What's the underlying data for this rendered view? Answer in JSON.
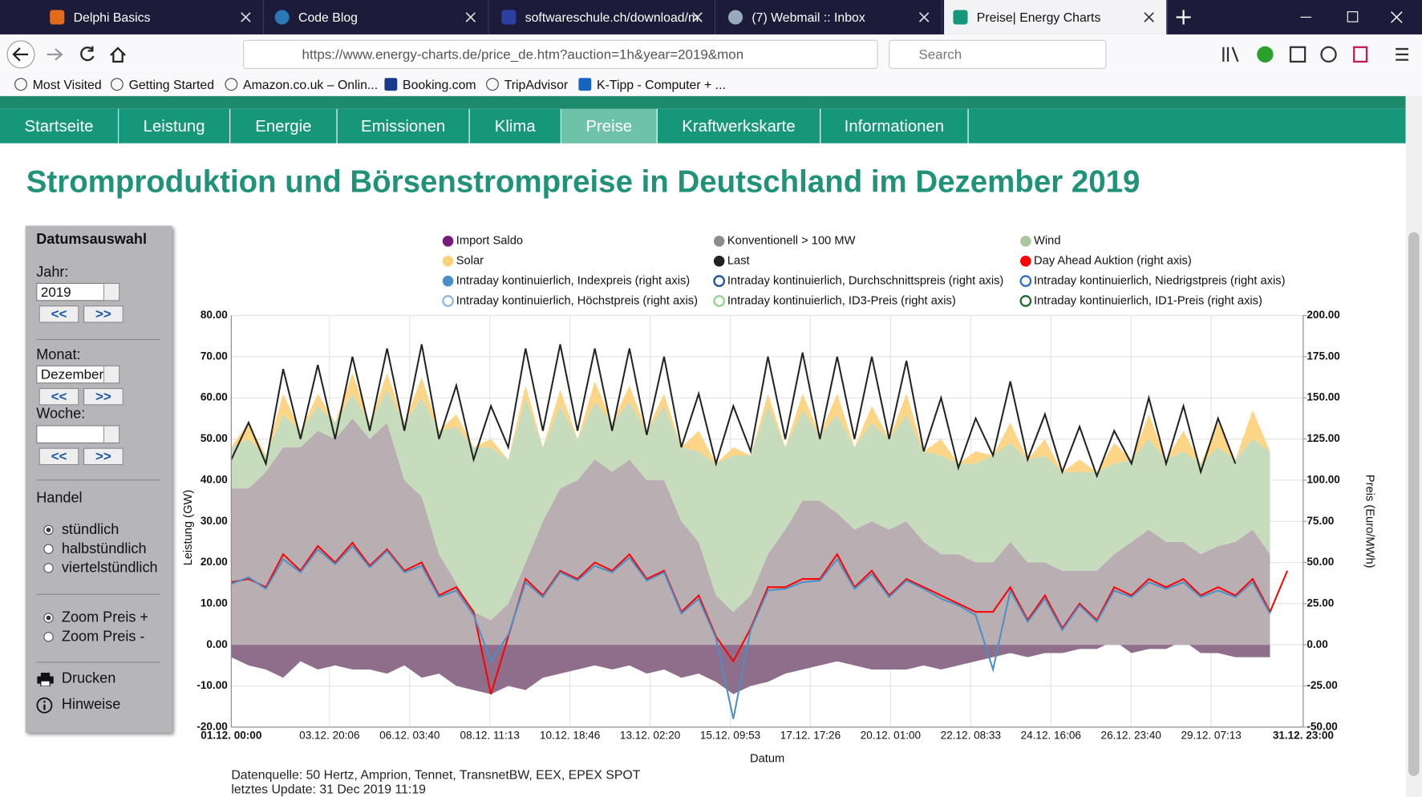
{
  "browser": {
    "tabs": [
      "Delphi Basics",
      "Code Blog",
      "softwareschule.ch/download/m",
      "(7) Webmail :: Inbox",
      "Preise| Energy Charts"
    ],
    "url": "https://www.energy-charts.de/price_de.htm?auction=1h&year=2019&mon",
    "search": "Search",
    "bookmarks": [
      "Most Visited",
      "Getting Started",
      "Amazon.co.uk – Onlin...",
      "Booking.com",
      "TripAdvisor",
      "K-Tipp - Computer + ..."
    ]
  },
  "site": {
    "nav": [
      "Startseite",
      "Leistung",
      "Energie",
      "Emissionen",
      "Klima",
      "Preise",
      "Kraftwerkskarte",
      "Informationen"
    ],
    "active_nav": 5,
    "title": "Stromproduktion und Börsenstrompreise in Deutschland im Dezember 2019"
  },
  "sidebar": {
    "heading": "Datumsauswahl",
    "year_label": "Jahr:",
    "year": "2019",
    "prev": "<<",
    "next": ">>",
    "month_label": "Monat:",
    "month": "Dezember",
    "week_label": "Woche:",
    "trade_label": "Handel",
    "trade_options": [
      "stündlich",
      "halbstündlich",
      "viertelstündlich"
    ],
    "zoom_options": [
      "Zoom Preis +",
      "Zoom Preis -"
    ],
    "print": "Drucken",
    "hints": "Hinweise"
  },
  "chart_data": {
    "type": "combo",
    "x_label": "Datum",
    "y_label": "Leistung (GW)",
    "y2_label": "Preis (Euro/MWh)",
    "grid": true,
    "xlim": [
      0,
      743
    ],
    "xticks": [
      {
        "value": 0,
        "label": "01.12. 00:00"
      },
      {
        "value": 68.1,
        "label": "03.12. 20:06"
      },
      {
        "value": 123.67,
        "label": "06.12. 03:40"
      },
      {
        "value": 179.22,
        "label": "08.12. 11:13"
      },
      {
        "value": 234.77,
        "label": "10.12. 18:46"
      },
      {
        "value": 290.33,
        "label": "13.12. 02:20"
      },
      {
        "value": 345.88,
        "label": "15.12. 09:53"
      },
      {
        "value": 401.43,
        "label": "17.12. 17:26"
      },
      {
        "value": 457,
        "label": "20.12. 01:00"
      },
      {
        "value": 512.55,
        "label": "22.12. 08:33"
      },
      {
        "value": 568.1,
        "label": "24.12. 16:06"
      },
      {
        "value": 623.67,
        "label": "26.12. 23:40"
      },
      {
        "value": 679.22,
        "label": "29.12. 07:13"
      },
      {
        "value": 743,
        "label": "31.12. 23:00"
      }
    ],
    "ylim": [
      -20,
      80
    ],
    "yticks": [
      {
        "value": -20,
        "label": "-20.00"
      },
      {
        "value": -10,
        "label": "-10.00"
      },
      {
        "value": 0,
        "label": "0.00"
      },
      {
        "value": 10,
        "label": "10.00"
      },
      {
        "value": 20,
        "label": "20.00"
      },
      {
        "value": 30,
        "label": "30.00"
      },
      {
        "value": 40,
        "label": "40.00"
      },
      {
        "value": 50,
        "label": "50.00"
      },
      {
        "value": 60,
        "label": "60.00"
      },
      {
        "value": 70,
        "label": "70.00"
      },
      {
        "value": 80,
        "label": "80.00"
      }
    ],
    "y2lim": [
      -50,
      200
    ],
    "y2ticks": [
      {
        "value": -50,
        "label": "-50.00"
      },
      {
        "value": -25,
        "label": "-25.00"
      },
      {
        "value": 0,
        "label": "0.00"
      },
      {
        "value": 25,
        "label": "25.00"
      },
      {
        "value": 50,
        "label": "50.00"
      },
      {
        "value": 75,
        "label": "75.00"
      },
      {
        "value": 100,
        "label": "100.00"
      },
      {
        "value": 125,
        "label": "125.00"
      },
      {
        "value": 150,
        "label": "150.00"
      },
      {
        "value": 175,
        "label": "175.00"
      },
      {
        "value": 200,
        "label": "200.00"
      }
    ],
    "x": [
      0,
      12,
      24,
      36,
      48,
      60,
      72,
      84,
      96,
      108,
      120,
      132,
      144,
      156,
      168,
      180,
      192,
      204,
      216,
      228,
      240,
      252,
      264,
      276,
      288,
      300,
      312,
      324,
      336,
      348,
      360,
      372,
      384,
      396,
      408,
      420,
      432,
      444,
      456,
      468,
      480,
      492,
      504,
      516,
      528,
      540,
      552,
      564,
      576,
      588,
      600,
      612,
      624,
      636,
      648,
      660,
      672,
      684,
      696,
      708,
      720,
      732
    ],
    "series": [
      {
        "name": "Import Saldo",
        "type": "area",
        "stacked": false,
        "color": "#7b1a7b",
        "fill": "#8e6e8a",
        "values": [
          -3,
          -5,
          -6,
          -8,
          -4,
          -6,
          -5,
          -6,
          -6,
          -7,
          -5,
          -8,
          -7,
          -10,
          -11,
          -12,
          -10,
          -11,
          -8,
          -7,
          -6,
          -5,
          -6,
          -5,
          -7,
          -6,
          -8,
          -7,
          -9,
          -12,
          -10,
          -9,
          -7,
          -6,
          -5,
          -4,
          -5,
          -6,
          -6,
          -6,
          -5,
          -6,
          -5,
          -4,
          -3,
          -2,
          -3,
          -2,
          -2,
          -1,
          -1,
          1,
          -2,
          -1,
          -1,
          1,
          -2,
          -2,
          -3,
          -3,
          -3,
          null
        ]
      },
      {
        "name": "Konventionell > 100 MW",
        "type": "area",
        "stacked": true,
        "color": "#8c8c8c",
        "fill": "#b9aeb1",
        "values": [
          38,
          38,
          42,
          48,
          48,
          52,
          50,
          55,
          50,
          54,
          40,
          36,
          22,
          15,
          8,
          6,
          10,
          20,
          30,
          38,
          40,
          45,
          42,
          45,
          40,
          40,
          30,
          25,
          12,
          8,
          12,
          22,
          28,
          35,
          35,
          32,
          28,
          30,
          28,
          30,
          25,
          22,
          22,
          20,
          20,
          25,
          20,
          20,
          18,
          18,
          18,
          22,
          25,
          28,
          25,
          25,
          22,
          24,
          25,
          28,
          22,
          null
        ]
      },
      {
        "name": "Wind",
        "type": "area",
        "stacked": true,
        "color": "#a9c8a0",
        "fill": "#c7dcbc",
        "values": [
          10,
          12,
          4,
          8,
          4,
          6,
          4,
          6,
          4,
          8,
          14,
          24,
          30,
          38,
          40,
          42,
          35,
          40,
          18,
          20,
          10,
          14,
          12,
          14,
          12,
          18,
          18,
          22,
          32,
          38,
          34,
          36,
          20,
          22,
          16,
          24,
          20,
          24,
          22,
          26,
          22,
          24,
          22,
          24,
          26,
          24,
          25,
          26,
          24,
          24,
          24,
          22,
          20,
          22,
          20,
          22,
          22,
          24,
          20,
          22,
          25,
          null
        ]
      },
      {
        "name": "Solar",
        "type": "area",
        "stacked": true,
        "color": "#fcd27c",
        "fill": "#fdd587",
        "values": [
          0,
          4,
          0,
          5,
          0,
          3,
          0,
          5,
          0,
          4,
          0,
          5,
          0,
          3,
          0,
          2,
          0,
          3,
          0,
          4,
          0,
          5,
          0,
          4,
          0,
          3,
          0,
          5,
          0,
          2,
          0,
          3,
          0,
          4,
          0,
          5,
          0,
          4,
          0,
          5,
          0,
          4,
          0,
          3,
          0,
          5,
          0,
          4,
          0,
          3,
          0,
          5,
          0,
          6,
          0,
          5,
          0,
          6,
          0,
          7,
          0,
          null
        ]
      },
      {
        "name": "Last",
        "type": "line",
        "color": "#222222",
        "values": [
          45,
          54,
          44,
          67,
          50,
          68,
          50,
          70,
          52,
          72,
          52,
          73,
          50,
          63,
          45,
          58,
          48,
          72,
          52,
          73,
          52,
          72,
          52,
          72,
          51,
          70,
          48,
          61,
          44,
          58,
          47,
          70,
          50,
          71,
          50,
          70,
          50,
          70,
          50,
          69,
          47,
          60,
          43,
          55,
          46,
          64,
          45,
          56,
          42,
          53,
          41,
          52,
          44,
          60,
          44,
          58,
          42,
          55,
          44,
          null,
          null,
          null
        ]
      },
      {
        "name": "Day Ahead Auktion (right axis)",
        "type": "line",
        "axis": "y2",
        "color": "#ff0000",
        "values": [
          38,
          40,
          35,
          55,
          45,
          60,
          50,
          62,
          48,
          58,
          45,
          50,
          30,
          35,
          20,
          -30,
          5,
          40,
          30,
          45,
          40,
          50,
          45,
          55,
          40,
          45,
          20,
          30,
          5,
          -10,
          10,
          35,
          35,
          40,
          40,
          55,
          35,
          45,
          30,
          40,
          35,
          30,
          25,
          20,
          20,
          35,
          15,
          30,
          10,
          25,
          15,
          35,
          30,
          40,
          35,
          40,
          30,
          35,
          30,
          40,
          20,
          45
        ]
      },
      {
        "name": "Intraday kontinuierlich, Indexpreis (right axis)",
        "type": "line",
        "axis": "y2",
        "color": "#4a90c8",
        "values": [
          37,
          41,
          34,
          52,
          44,
          58,
          49,
          60,
          47,
          57,
          44,
          48,
          29,
          33,
          18,
          -10,
          6,
          38,
          29,
          44,
          39,
          48,
          44,
          53,
          39,
          44,
          19,
          28,
          4,
          -45,
          9,
          33,
          34,
          38,
          39,
          52,
          34,
          43,
          29,
          39,
          34,
          28,
          24,
          18,
          -15,
          33,
          14,
          28,
          9,
          24,
          14,
          33,
          29,
          38,
          34,
          38,
          29,
          33,
          29,
          38,
          19,
          null
        ]
      }
    ],
    "legend_only": [
      {
        "name": "Intraday kontinuierlich, Durchschnittspreis (right axis)",
        "color": "#1f4e9c"
      },
      {
        "name": "Intraday kontinuierlich, Niedrigstpreis (right axis)",
        "color": "#2a6fc0"
      },
      {
        "name": "Intraday kontinuierlich, Höchstpreis (right axis)",
        "color": "#8ab8e0"
      },
      {
        "name": "Intraday kontinuierlich, ID3-Preis (right axis)",
        "color": "#8fd48f"
      },
      {
        "name": "Intraday kontinuierlich, ID1-Preis (right axis)",
        "color": "#1e6b2a"
      }
    ]
  },
  "footer": {
    "source": "Datenquelle: 50 Hertz, Amprion, Tennet, TransnetBW, EEX, EPEX SPOT",
    "updated": "letztes Update: 31 Dec 2019 11:19"
  }
}
